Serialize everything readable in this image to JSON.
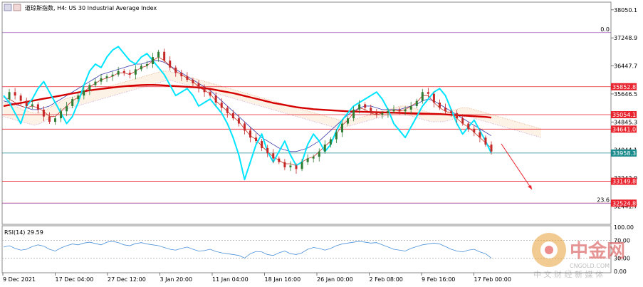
{
  "chart_data": {
    "type": "line",
    "title": "道琼斯指数, H4:  US 30 Industrial Average Index",
    "price_axis_ticks": [
      "38050.1",
      "37248.9",
      "36447.7",
      "35646.5",
      "34845.3",
      "34044.1",
      "33242.9",
      "32441.7"
    ],
    "ylim": [
      31940,
      38250
    ],
    "level_tags": [
      {
        "label": "35852.8",
        "value": 35852.8,
        "color": "#e8232d"
      },
      {
        "label": "35054.1",
        "value": 35054.1,
        "color": "#e8232d"
      },
      {
        "label": "34641.0",
        "value": 34641.0,
        "color": "#e8232d"
      },
      {
        "label": "33958.3",
        "value": 33958.3,
        "color": "#1b8a8a"
      },
      {
        "label": "33149.8",
        "value": 33149.8,
        "color": "#e8232d"
      },
      {
        "label": "32524.8",
        "value": 32524.8,
        "color": "#e8232d"
      }
    ],
    "fib_labels": [
      {
        "label": "0.0",
        "value": 37400
      },
      {
        "label": "23.6",
        "value": 32524.8
      }
    ],
    "time_axis_labels": [
      "9 Dec 2021",
      "17 Dec 04:00",
      "27 Dec 12:00",
      "3 Jan 20:00",
      "11 Jan 04:00",
      "18 Jan 16:00",
      "26 Jan 00:00",
      "2 Feb 08:00",
      "9 Feb 16:00",
      "17 Feb 00:00"
    ],
    "series": [
      {
        "key": "price",
        "values": [
          35500,
          35700,
          35600,
          35450,
          35300,
          35350,
          35200,
          35000,
          34850,
          34950,
          35150,
          35300,
          35500,
          35600,
          35750,
          35900,
          36000,
          36100,
          36150,
          36200,
          36300,
          36250,
          36200,
          36350,
          36450,
          36500,
          36700,
          36850,
          36600,
          36400,
          36250,
          36150,
          36050,
          35950,
          35800,
          35700,
          35600,
          35400,
          35250,
          35100,
          34950,
          34800,
          34600,
          34400,
          34300,
          34100,
          33950,
          33800,
          33700,
          33550,
          33600,
          33500,
          33700,
          33800,
          33850,
          34000,
          34200,
          34350,
          34550,
          34800,
          34950,
          35200,
          35350,
          35250,
          35100,
          35050,
          35100,
          35150,
          35200,
          35150,
          35200,
          35300,
          35450,
          35700,
          35650,
          35400,
          35250,
          35150,
          35100,
          34950,
          34800,
          34650,
          34550,
          34400,
          34200,
          34000
        ]
      },
      {
        "key": "cyan_line",
        "values": [
          35600,
          35400,
          35100,
          34800,
          35300,
          35500,
          35800,
          36000,
          35700,
          35400,
          35100,
          34800,
          35000,
          35400,
          35900,
          36300,
          36500,
          36400,
          36700,
          36900,
          37000,
          36800,
          36600,
          36500,
          36700,
          36800,
          36600,
          36400,
          36200,
          35900,
          35600,
          35700,
          35800,
          35600,
          35300,
          35400,
          35500,
          35300,
          35100,
          34800,
          34400,
          33900,
          33200,
          33700,
          34200,
          34500,
          34000,
          33700,
          34000,
          34300,
          33900,
          33600,
          33700,
          34200,
          34500,
          34300,
          34000,
          34200,
          34600,
          34900,
          35100,
          35300,
          35400,
          35500,
          35600,
          35700,
          35500,
          35200,
          34800,
          34600,
          34400,
          34700,
          35000,
          35300,
          35500,
          35700,
          35800,
          35600,
          35200,
          34800,
          34500,
          34700,
          34900,
          34600,
          34300,
          33950
        ]
      },
      {
        "key": "ma_red_thick",
        "values": [
          35300,
          35330,
          35360,
          35390,
          35420,
          35450,
          35480,
          35510,
          35540,
          35570,
          35600,
          35630,
          35660,
          35690,
          35720,
          35750,
          35770,
          35790,
          35810,
          35830,
          35850,
          35865,
          35880,
          35890,
          35900,
          35905,
          35905,
          35900,
          35890,
          35880,
          35870,
          35860,
          35850,
          35840,
          35830,
          35810,
          35790,
          35760,
          35730,
          35700,
          35670,
          35630,
          35590,
          35550,
          35510,
          35470,
          35430,
          35390,
          35360,
          35330,
          35300,
          35270,
          35250,
          35230,
          35210,
          35200,
          35190,
          35180,
          35170,
          35160,
          35150,
          35145,
          35140,
          35135,
          35130,
          35125,
          35120,
          35115,
          35110,
          35105,
          35100,
          35095,
          35090,
          35085,
          35080,
          35075,
          35070,
          35060,
          35050,
          35040,
          35030,
          35020,
          35010,
          35000,
          34990,
          34970
        ]
      },
      {
        "key": "kijun",
        "values": [
          35450,
          35400,
          35350,
          35300,
          35250,
          35200,
          35200,
          35250,
          35300,
          35400,
          35500,
          35600,
          35700,
          35800,
          35900,
          36000,
          36100,
          36200,
          36250,
          36300,
          36350,
          36400,
          36450,
          36500,
          36500,
          36550,
          36600,
          36600,
          36550,
          36450,
          36350,
          36250,
          36150,
          36050,
          35950,
          35850,
          35750,
          35600,
          35450,
          35300,
          35150,
          35000,
          34850,
          34700,
          34550,
          34400,
          34300,
          34200,
          34100,
          34050,
          34000,
          34000,
          34050,
          34100,
          34200,
          34300,
          34450,
          34600,
          34750,
          34900,
          35050,
          35150,
          35250,
          35300,
          35300,
          35250,
          35200,
          35200,
          35200,
          35200,
          35250,
          35300,
          35350,
          35450,
          35500,
          35450,
          35350,
          35250,
          35150,
          35050,
          34950,
          34850,
          34750,
          34650,
          34550,
          34450
        ]
      },
      {
        "key": "tenkan",
        "values": [
          35550,
          35500,
          35400,
          35300,
          35250,
          35300,
          35250,
          35150,
          35000,
          35000,
          35150,
          35300,
          35450,
          35550,
          35700,
          35850,
          35950,
          36050,
          36100,
          36150,
          36250,
          36250,
          36200,
          36300,
          36400,
          36450,
          36600,
          36700,
          36600,
          36450,
          36300,
          36200,
          36100,
          36000,
          35850,
          35750,
          35650,
          35450,
          35300,
          35150,
          35000,
          34850,
          34650,
          34450,
          34350,
          34150,
          34000,
          33850,
          33750,
          33650,
          33650,
          33600,
          33700,
          33800,
          33850,
          34000,
          34150,
          34300,
          34500,
          34750,
          34900,
          35100,
          35250,
          35200,
          35100,
          35050,
          35100,
          35150,
          35200,
          35150,
          35200,
          35300,
          35400,
          35600,
          35600,
          35400,
          35250,
          35150,
          35100,
          34950,
          34800,
          34700,
          34550,
          34400,
          34250,
          34100
        ]
      },
      {
        "key": "cloud_a",
        "values": [
          35400,
          35350,
          35300,
          35200,
          35150,
          35100,
          35100,
          35200,
          35300,
          35400,
          35500,
          35550,
          35600,
          35650,
          35700,
          35750,
          35800,
          35850,
          35900,
          35950,
          36000,
          36050,
          36100,
          36150,
          36200,
          36250,
          36300,
          36300,
          36250,
          36200,
          36150,
          36100,
          36050,
          36000,
          35950,
          35900,
          35850,
          35800,
          35750,
          35700,
          35650,
          35600,
          35550,
          35500,
          35450,
          35400,
          35350,
          35300,
          35250,
          35200,
          35150,
          35100,
          35050,
          35000,
          34950,
          34900,
          34900,
          34900,
          34950,
          35000,
          35050,
          35100,
          35150,
          35200,
          35250,
          35300,
          35300,
          35250,
          35200,
          35150,
          35100,
          35100,
          35100,
          35150,
          35200,
          35250,
          35250,
          35200,
          35150,
          35100,
          35050,
          35000,
          34950,
          34900,
          34850,
          34800,
          34750,
          34700,
          34650
        ]
      },
      {
        "key": "cloud_b",
        "values": [
          35000,
          34950,
          34900,
          34850,
          34800,
          34750,
          34800,
          34900,
          35000,
          35100,
          35200,
          35250,
          35300,
          35350,
          35400,
          35450,
          35500,
          35550,
          35600,
          35650,
          35700,
          35750,
          35800,
          35850,
          35900,
          35950,
          36000,
          36050,
          36000,
          35950,
          35900,
          35850,
          35800,
          35750,
          35700,
          35650,
          35600,
          35550,
          35500,
          35450,
          35400,
          35350,
          35300,
          35250,
          35200,
          35150,
          35100,
          35050,
          35000,
          34950,
          34900,
          34850,
          34800,
          34750,
          34700,
          34700,
          34700,
          34750,
          34800,
          34850,
          34900,
          34950,
          35000,
          35050,
          35100,
          35100,
          35050,
          35000,
          34950,
          34900,
          34850,
          34850,
          34850,
          34900,
          34950,
          35000,
          35000,
          34950,
          34900,
          34850,
          34800,
          34750,
          34700,
          34650,
          34600,
          34550,
          34500,
          34450,
          34400
        ]
      }
    ],
    "rsi": {
      "label": "RSI(14) 29.59",
      "value": 29.59,
      "ticks": [
        "100.00",
        "70.00",
        "30.00",
        "0.00"
      ],
      "levels": [
        70,
        30
      ],
      "values": [
        55,
        58,
        52,
        48,
        50,
        56,
        60,
        57,
        50,
        46,
        53,
        58,
        62,
        60,
        64,
        66,
        63,
        60,
        66,
        68,
        65,
        60,
        58,
        63,
        65,
        62,
        60,
        58,
        54,
        50,
        48,
        52,
        55,
        50,
        46,
        47,
        50,
        45,
        42,
        40,
        38,
        36,
        30,
        40,
        45,
        44,
        38,
        36,
        42,
        46,
        40,
        38,
        42,
        50,
        54,
        52,
        48,
        52,
        58,
        62,
        64,
        66,
        68,
        66,
        64,
        65,
        60,
        55,
        50,
        48,
        46,
        52,
        56,
        60,
        62,
        64,
        62,
        56,
        50,
        46,
        44,
        48,
        50,
        44,
        40,
        30
      ]
    },
    "watermark": {
      "name": "中金网",
      "url": "CNGOLD.COM",
      "tagline": "中 文 财 经 新 媒 体"
    }
  }
}
